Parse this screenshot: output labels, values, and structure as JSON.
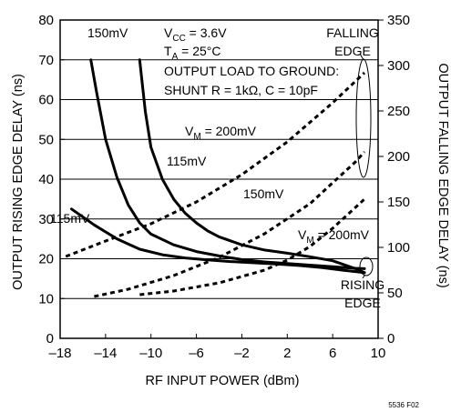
{
  "chart_data": {
    "type": "line",
    "title": "",
    "xlabel": "RF INPUT POWER (dBm)",
    "ylabel_left": "OUTPUT RISING EDGE DELAY (ns)",
    "ylabel_right": "OUTPUT FALLING EDGE DELAY (ns)",
    "xlim": [
      -18,
      10
    ],
    "ylim_left": [
      0,
      80
    ],
    "ylim_right": [
      0,
      350
    ],
    "x_ticks": [
      -18,
      -14,
      -10,
      -6,
      -2,
      2,
      6,
      10
    ],
    "x_tick_labels": [
      "–18",
      "–14",
      "–10",
      "–6",
      "–2",
      "2",
      "6",
      "10"
    ],
    "y_left_ticks": [
      0,
      10,
      20,
      30,
      40,
      50,
      60,
      70,
      80
    ],
    "y_right_ticks": [
      0,
      50,
      100,
      150,
      200,
      250,
      300,
      350
    ],
    "grid": true,
    "conditions": {
      "vcc_sym": "V",
      "vcc_sub": "CC",
      "vcc_val": " = 3.6V",
      "ta_sym": "T",
      "ta_sub": "A",
      "ta_val": " = 25°C",
      "load_line1": "OUTPUT LOAD TO GROUND:",
      "load_line2": "SHUNT R = 1kΩ, C = 10pF"
    },
    "part_code": "5536 F02",
    "group_labels": {
      "falling_line1": "FALLING",
      "falling_line2": "EDGE",
      "rising_line1": "RISING",
      "rising_line2": "EDGE"
    },
    "series_rising": [
      {
        "label": "150mV",
        "x": [
          -15.3,
          -14.8,
          -14,
          -13,
          -12,
          -11,
          -10,
          -8,
          -6,
          -4,
          -2,
          0,
          2,
          4,
          6,
          8,
          8.8
        ],
        "y": [
          70,
          62,
          50,
          40.5,
          33.5,
          29,
          26.2,
          23.5,
          21.8,
          20.7,
          19.8,
          19.2,
          18.8,
          18.4,
          18,
          17.6,
          17.5
        ]
      },
      {
        "label": "115mV",
        "x": [
          -17,
          -15,
          -13,
          -11,
          -9,
          -7,
          -5,
          -3,
          -1,
          1,
          3,
          5,
          7,
          8.8
        ],
        "y": [
          32.5,
          28.5,
          25,
          22.4,
          21,
          20.2,
          19.7,
          19.3,
          19,
          18.7,
          18.3,
          17.8,
          17.1,
          16.5
        ]
      },
      {
        "label_prefix": "V",
        "label_sub": "M",
        "label_suffix": " = 200mV",
        "x": [
          -11,
          -10.5,
          -10,
          -9,
          -8,
          -7,
          -6,
          -5,
          -4,
          -2,
          0,
          2,
          4,
          6,
          8,
          8.8
        ],
        "y": [
          70,
          57,
          48,
          40,
          35,
          31.5,
          29,
          27,
          25.5,
          23.5,
          22.2,
          21.4,
          20.5,
          19.5,
          17.5,
          16.5
        ]
      }
    ],
    "series_falling": [
      {
        "label": "115mV",
        "x": [
          -17.5,
          -14,
          -10,
          -6,
          -2,
          2,
          6,
          8.8
        ],
        "y": [
          90,
          107,
          126,
          150,
          180,
          216,
          259,
          292
        ]
      },
      {
        "label": "150mV",
        "x": [
          -15,
          -12,
          -8,
          -4,
          0,
          4,
          8,
          8.8
        ],
        "y": [
          46,
          54,
          69,
          89,
          115,
          148,
          194,
          205
        ]
      },
      {
        "label_prefix": "V",
        "label_sub": "M",
        "label_suffix": " = 200mV",
        "x": [
          -11,
          -8,
          -4,
          0,
          2,
          4,
          6,
          8.8
        ],
        "y": [
          48,
          52,
          61,
          75,
          86,
          101,
          121,
          153
        ]
      }
    ]
  }
}
